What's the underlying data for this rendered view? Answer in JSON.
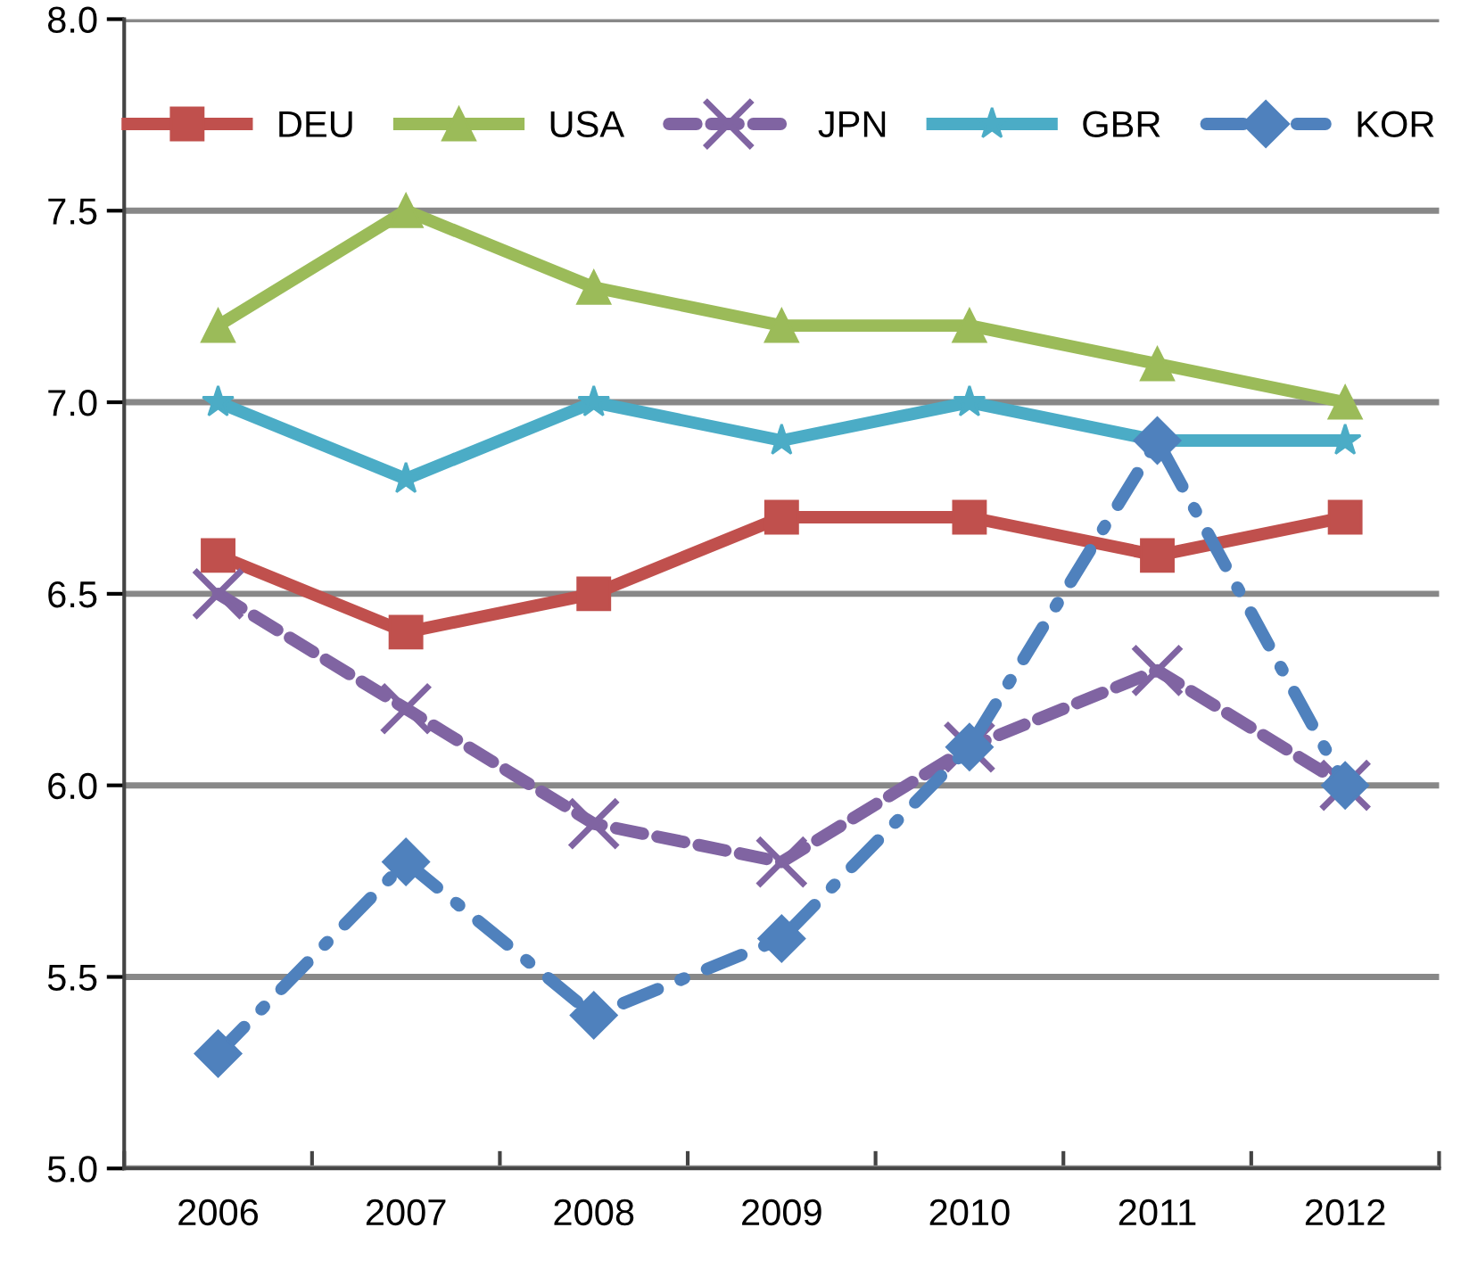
{
  "chart_data": {
    "type": "line",
    "categories": [
      "2006",
      "2007",
      "2008",
      "2009",
      "2010",
      "2011",
      "2012"
    ],
    "series": [
      {
        "name": "DEU",
        "color": "#c0504d",
        "marker": "square",
        "line_style": "solid",
        "values": [
          6.6,
          6.4,
          6.5,
          6.7,
          6.7,
          6.6,
          6.7
        ]
      },
      {
        "name": "USA",
        "color": "#9bbb59",
        "marker": "triangle",
        "line_style": "solid",
        "values": [
          7.2,
          7.5,
          7.3,
          7.2,
          7.2,
          7.1,
          7.0
        ]
      },
      {
        "name": "JPN",
        "color": "#8064a2",
        "marker": "cross",
        "line_style": "dashed",
        "values": [
          6.5,
          6.2,
          5.9,
          5.8,
          6.1,
          6.3,
          6.0
        ]
      },
      {
        "name": "GBR",
        "color": "#4bacc6",
        "marker": "star",
        "line_style": "solid",
        "values": [
          7.0,
          6.8,
          7.0,
          6.9,
          7.0,
          6.9,
          6.9
        ]
      },
      {
        "name": "KOR",
        "color": "#4f81bd",
        "marker": "diamond",
        "line_style": "dashdot",
        "values": [
          5.3,
          5.8,
          5.4,
          5.6,
          6.1,
          6.9,
          6.0
        ]
      }
    ],
    "ylim": [
      5.0,
      8.0
    ],
    "yticks": [
      {
        "value": 5.0,
        "label": "5.0"
      },
      {
        "value": 5.5,
        "label": "5.5"
      },
      {
        "value": 6.0,
        "label": "6.0"
      },
      {
        "value": 6.5,
        "label": "6.5"
      },
      {
        "value": 7.0,
        "label": "7.0"
      },
      {
        "value": 7.5,
        "label": "7.5"
      },
      {
        "value": 8.0,
        "label": "8.0"
      }
    ],
    "grid": "y",
    "legend": "top"
  }
}
